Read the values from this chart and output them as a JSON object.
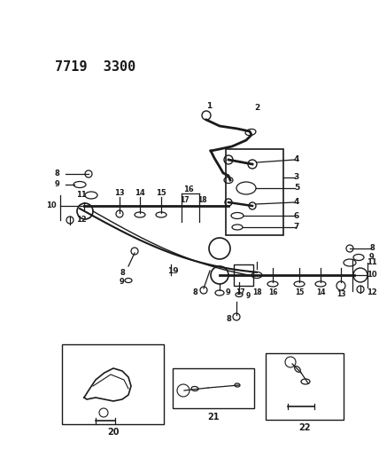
{
  "title": "7719  3300",
  "bg_color": "#ffffff",
  "line_color": "#1a1a1a",
  "fig_width": 4.28,
  "fig_height": 5.33,
  "dpi": 100
}
